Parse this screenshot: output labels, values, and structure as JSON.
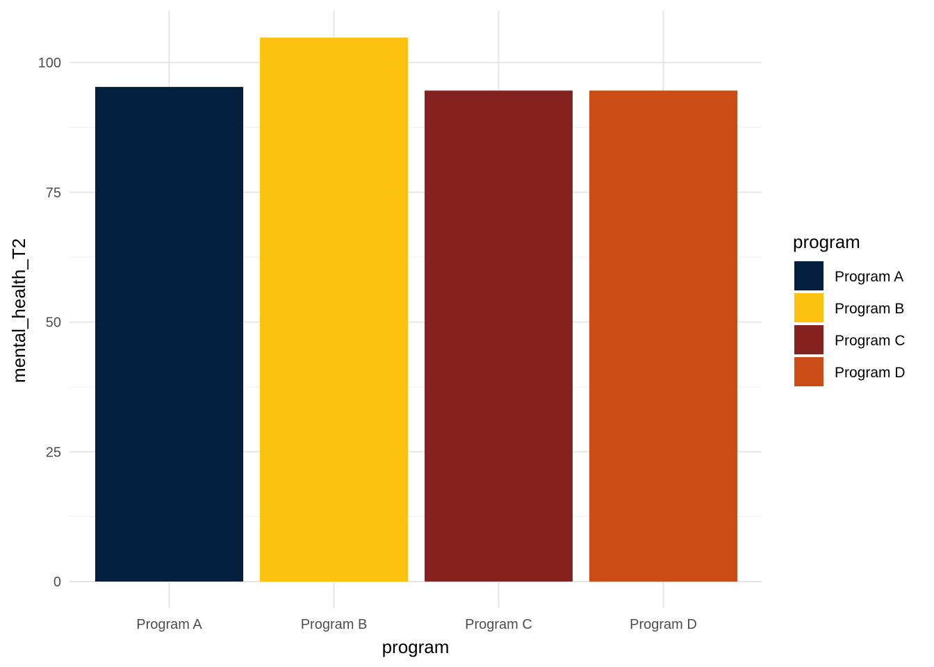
{
  "chart_data": {
    "type": "bar",
    "categories": [
      "Program A",
      "Program B",
      "Program C",
      "Program D"
    ],
    "values": [
      95.3,
      104.8,
      94.6,
      94.6
    ],
    "colors": [
      "#041e3e",
      "#fdc20f",
      "#84221f",
      "#cb4c16"
    ],
    "xlabel": "program",
    "ylabel": "mental_health_T2",
    "ylim": [
      0,
      105
    ],
    "yticks": [
      0,
      25,
      50,
      75,
      100
    ],
    "grid": true,
    "legend": {
      "title": "program",
      "placement": "right",
      "entries": [
        "Program A",
        "Program B",
        "Program C",
        "Program D"
      ]
    }
  }
}
